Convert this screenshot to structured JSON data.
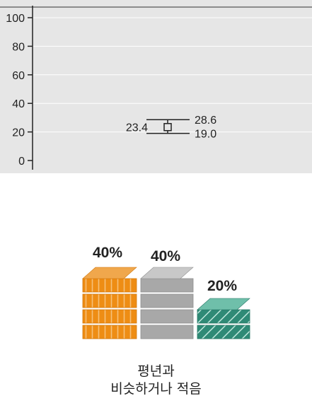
{
  "chart_data": {
    "type": "range",
    "ylim": [
      0,
      100
    ],
    "y_ticks": [
      "0",
      "20",
      "40",
      "60",
      "80",
      "100"
    ],
    "grid": true,
    "x_categories": [
      ""
    ],
    "series": [
      {
        "mean": 23.4,
        "upper": 28.6,
        "lower": 19.0,
        "labels": {
          "mean": "23.4",
          "upper": "28.6",
          "lower": "19.0"
        }
      }
    ]
  },
  "distribution": {
    "stacks": [
      {
        "label": "40%",
        "value": 40,
        "color": "#f0a74c",
        "tiers": 4
      },
      {
        "label": "40%",
        "value": 40,
        "color": "#c8c8c8",
        "tiers": 4
      },
      {
        "label": "20%",
        "value": 20,
        "color": "#6fbfaa",
        "tiers": 2
      }
    ],
    "caption": [
      "평년과",
      "비슷하거나 적음"
    ]
  }
}
